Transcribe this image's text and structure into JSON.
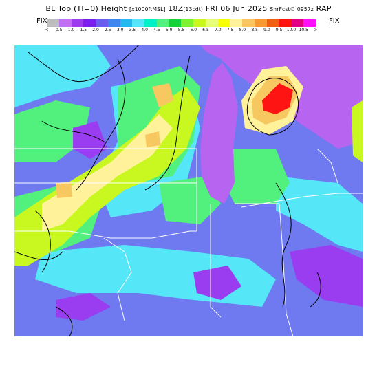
{
  "header": {
    "title_main": "BL Top (TI=0) Height",
    "title_units": "[x1000ftMSL]",
    "title_time": "18Z",
    "title_fcst": "(13cdt)",
    "title_date": "FRI 06 Jun 2025",
    "title_source": "ShrFcst© 0957z",
    "title_model": "RAP"
  },
  "legend": {
    "left_label": "FIX",
    "right_label": "FIX",
    "ticks": [
      "<",
      "0.5",
      "1.0",
      "1.5",
      "2.0",
      "2.5",
      "3.0",
      "3.5",
      "4.0",
      "4.5",
      "5.0",
      "5.5",
      "6.0",
      "6.5",
      "7.0",
      "7.5",
      "8.0",
      "8.5",
      "9.0",
      "9.5",
      "10.0",
      "10.5",
      ">"
    ],
    "colors": [
      "#bdbdbd",
      "#c070f0",
      "#9a3cf0",
      "#7a1ef0",
      "#6a5cf0",
      "#3f86f0",
      "#22b8f0",
      "#55e6f8",
      "#00f0c8",
      "#52f07c",
      "#14d23c",
      "#7cf230",
      "#c8f820",
      "#e6ff76",
      "#f8ff00",
      "#fff29a",
      "#f8c860",
      "#f89a30",
      "#f06010",
      "#ff1414",
      "#e00080",
      "#ff10ff"
    ],
    "land_lake_colors": {
      "lake": "#b764f1",
      "low": "#6f79f0",
      "cyan": "#55e6f8",
      "green": "#52f07c",
      "lime": "#c8f820",
      "yellow": "#fff29a",
      "orange": "#f8c860",
      "red": "#ff1414"
    }
  }
}
